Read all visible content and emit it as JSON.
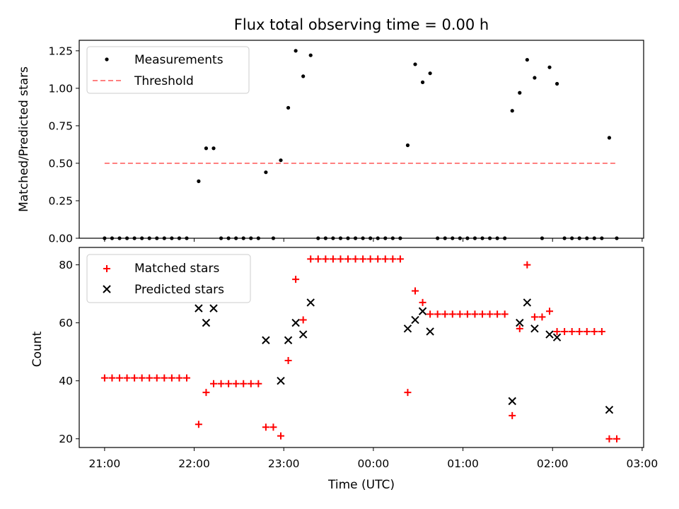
{
  "chart_data": [
    {
      "type": "scatter",
      "title": "Flux total observing time = 0.00 h",
      "xlabel": "",
      "ylabel": "Matched/Predicted stars",
      "xlim": [
        "20:43",
        "03:01"
      ],
      "ylim": [
        0,
        1.32
      ],
      "y_ticks": [
        "0.00",
        "0.25",
        "0.50",
        "0.75",
        "1.00",
        "1.25"
      ],
      "legend_position": "upper-left",
      "series": [
        {
          "name": "Measurements",
          "marker": "dot",
          "color": "#000000",
          "points": [
            [
              "21:00",
              0
            ],
            [
              "21:05",
              0
            ],
            [
              "21:10",
              0
            ],
            [
              "21:15",
              0
            ],
            [
              "21:20",
              0
            ],
            [
              "21:25",
              0
            ],
            [
              "21:30",
              0
            ],
            [
              "21:35",
              0
            ],
            [
              "21:40",
              0
            ],
            [
              "21:45",
              0
            ],
            [
              "21:50",
              0
            ],
            [
              "21:55",
              0
            ],
            [
              "22:03",
              0.38
            ],
            [
              "22:08",
              0.6
            ],
            [
              "22:13",
              0.6
            ],
            [
              "22:18",
              0
            ],
            [
              "22:23",
              0
            ],
            [
              "22:28",
              0
            ],
            [
              "22:33",
              0
            ],
            [
              "22:38",
              0
            ],
            [
              "22:43",
              0
            ],
            [
              "22:48",
              0.44
            ],
            [
              "22:53",
              0
            ],
            [
              "22:58",
              0.52
            ],
            [
              "23:03",
              0.87
            ],
            [
              "23:08",
              1.25
            ],
            [
              "23:13",
              1.08
            ],
            [
              "23:18",
              1.22
            ],
            [
              "23:23",
              0
            ],
            [
              "23:28",
              0
            ],
            [
              "23:33",
              0
            ],
            [
              "23:38",
              0
            ],
            [
              "23:43",
              0
            ],
            [
              "23:48",
              0
            ],
            [
              "23:53",
              0
            ],
            [
              "23:58",
              0
            ],
            [
              "00:03",
              0
            ],
            [
              "00:08",
              0
            ],
            [
              "00:13",
              0
            ],
            [
              "00:18",
              0
            ],
            [
              "00:23",
              0.62
            ],
            [
              "00:28",
              1.16
            ],
            [
              "00:33",
              1.04
            ],
            [
              "00:38",
              1.1
            ],
            [
              "00:43",
              0
            ],
            [
              "00:48",
              0
            ],
            [
              "00:53",
              0
            ],
            [
              "00:58",
              0
            ],
            [
              "01:03",
              0
            ],
            [
              "01:08",
              0
            ],
            [
              "01:13",
              0
            ],
            [
              "01:18",
              0
            ],
            [
              "01:23",
              0
            ],
            [
              "01:28",
              0
            ],
            [
              "01:33",
              0.85
            ],
            [
              "01:38",
              0.97
            ],
            [
              "01:43",
              1.19
            ],
            [
              "01:48",
              1.07
            ],
            [
              "01:53",
              0
            ],
            [
              "01:58",
              1.14
            ],
            [
              "02:03",
              1.03
            ],
            [
              "02:08",
              0
            ],
            [
              "02:13",
              0
            ],
            [
              "02:18",
              0
            ],
            [
              "02:23",
              0
            ],
            [
              "02:28",
              0
            ],
            [
              "02:33",
              0
            ],
            [
              "02:38",
              0.67
            ],
            [
              "02:43",
              0
            ]
          ]
        },
        {
          "name": "Threshold",
          "marker": "dashed-line",
          "color": "#ff8080",
          "points": [
            [
              "21:00",
              0.5
            ],
            [
              "02:43",
              0.5
            ]
          ]
        }
      ]
    },
    {
      "type": "scatter",
      "title": "",
      "xlabel": "Time (UTC)",
      "ylabel": "Count",
      "xlim": [
        "20:43",
        "03:01"
      ],
      "ylim": [
        17,
        86
      ],
      "y_ticks": [
        "20",
        "40",
        "60",
        "80"
      ],
      "x_ticks": [
        "21:00",
        "22:00",
        "23:00",
        "00:00",
        "01:00",
        "02:00",
        "03:00"
      ],
      "legend_position": "upper-left",
      "series": [
        {
          "name": "Matched stars",
          "marker": "plus",
          "color": "#ff0000",
          "points": [
            [
              "21:00",
              41
            ],
            [
              "21:05",
              41
            ],
            [
              "21:10",
              41
            ],
            [
              "21:15",
              41
            ],
            [
              "21:20",
              41
            ],
            [
              "21:25",
              41
            ],
            [
              "21:30",
              41
            ],
            [
              "21:35",
              41
            ],
            [
              "21:40",
              41
            ],
            [
              "21:45",
              41
            ],
            [
              "21:50",
              41
            ],
            [
              "21:55",
              41
            ],
            [
              "22:03",
              25
            ],
            [
              "22:08",
              36
            ],
            [
              "22:13",
              39
            ],
            [
              "22:18",
              39
            ],
            [
              "22:23",
              39
            ],
            [
              "22:28",
              39
            ],
            [
              "22:33",
              39
            ],
            [
              "22:38",
              39
            ],
            [
              "22:43",
              39
            ],
            [
              "22:48",
              24
            ],
            [
              "22:53",
              24
            ],
            [
              "22:58",
              21
            ],
            [
              "23:03",
              47
            ],
            [
              "23:08",
              75
            ],
            [
              "23:13",
              61
            ],
            [
              "23:18",
              82
            ],
            [
              "23:23",
              82
            ],
            [
              "23:28",
              82
            ],
            [
              "23:33",
              82
            ],
            [
              "23:38",
              82
            ],
            [
              "23:43",
              82
            ],
            [
              "23:48",
              82
            ],
            [
              "23:53",
              82
            ],
            [
              "23:58",
              82
            ],
            [
              "00:03",
              82
            ],
            [
              "00:08",
              82
            ],
            [
              "00:13",
              82
            ],
            [
              "00:18",
              82
            ],
            [
              "00:23",
              36
            ],
            [
              "00:28",
              71
            ],
            [
              "00:33",
              67
            ],
            [
              "00:38",
              63
            ],
            [
              "00:43",
              63
            ],
            [
              "00:48",
              63
            ],
            [
              "00:53",
              63
            ],
            [
              "00:58",
              63
            ],
            [
              "01:03",
              63
            ],
            [
              "01:08",
              63
            ],
            [
              "01:13",
              63
            ],
            [
              "01:18",
              63
            ],
            [
              "01:23",
              63
            ],
            [
              "01:28",
              63
            ],
            [
              "01:33",
              28
            ],
            [
              "01:38",
              58
            ],
            [
              "01:43",
              80
            ],
            [
              "01:48",
              62
            ],
            [
              "01:53",
              62
            ],
            [
              "01:58",
              64
            ],
            [
              "02:03",
              57
            ],
            [
              "02:08",
              57
            ],
            [
              "02:13",
              57
            ],
            [
              "02:18",
              57
            ],
            [
              "02:23",
              57
            ],
            [
              "02:28",
              57
            ],
            [
              "02:33",
              57
            ],
            [
              "02:38",
              20
            ],
            [
              "02:43",
              20
            ]
          ]
        },
        {
          "name": "Predicted stars",
          "marker": "x",
          "color": "#000000",
          "points": [
            [
              "22:03",
              65
            ],
            [
              "22:08",
              60
            ],
            [
              "22:13",
              65
            ],
            [
              "22:48",
              54
            ],
            [
              "22:58",
              40
            ],
            [
              "23:03",
              54
            ],
            [
              "23:08",
              60
            ],
            [
              "23:13",
              56
            ],
            [
              "23:18",
              67
            ],
            [
              "00:23",
              58
            ],
            [
              "00:28",
              61
            ],
            [
              "00:33",
              64
            ],
            [
              "00:38",
              57
            ],
            [
              "01:33",
              33
            ],
            [
              "01:38",
              60
            ],
            [
              "01:43",
              67
            ],
            [
              "01:48",
              58
            ],
            [
              "01:58",
              56
            ],
            [
              "02:03",
              55
            ],
            [
              "02:38",
              30
            ]
          ]
        }
      ]
    }
  ]
}
